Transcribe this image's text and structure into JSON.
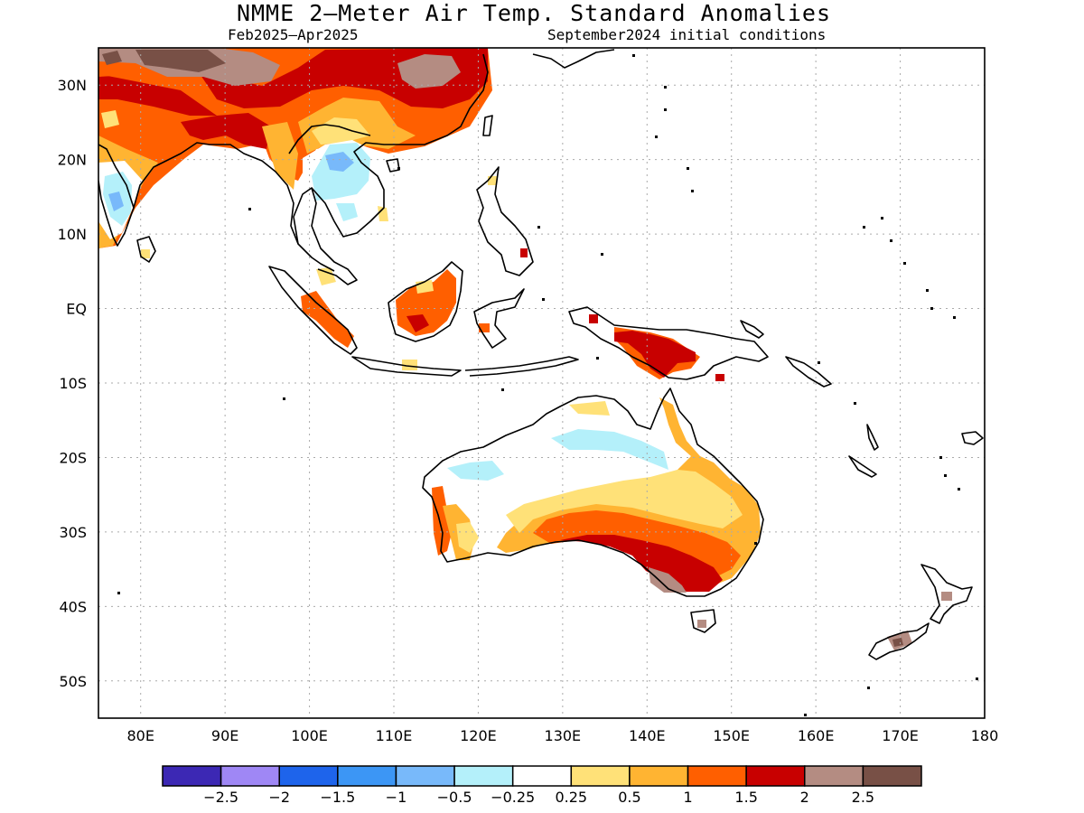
{
  "header": {
    "title": "NMME 2—Meter Air Temp. Standard Anomalies",
    "period": "Feb2025—Apr2025",
    "init": "September2024 initial conditions"
  },
  "map": {
    "lat_range": [
      -55,
      35
    ],
    "lon_range": [
      75,
      180
    ],
    "lat_labels": [
      "30N",
      "20N",
      "10N",
      "EQ",
      "10S",
      "20S",
      "30S",
      "40S",
      "50S"
    ],
    "lon_labels": [
      "80E",
      "90E",
      "100E",
      "110E",
      "120E",
      "130E",
      "140E",
      "150E",
      "160E",
      "170E",
      "180"
    ],
    "lat_values": [
      30,
      20,
      10,
      0,
      -10,
      -20,
      -30,
      -40,
      -50
    ],
    "lon_values": [
      80,
      90,
      100,
      110,
      120,
      130,
      140,
      150,
      160,
      170,
      180
    ]
  },
  "legend": {
    "colors": [
      "#3c28b4",
      "#9f87f5",
      "#1e64eb",
      "#3c96f5",
      "#78b9fa",
      "#b4f0fa",
      "#ffffff",
      "#ffe178",
      "#ffb432",
      "#ff5f00",
      "#c80000",
      "#b48c82",
      "#785046"
    ],
    "labels": [
      "−2.5",
      "−2",
      "−1.5",
      "−1",
      "−0.5",
      "−0.25",
      "0.25",
      "0.5",
      "1",
      "1.5",
      "2",
      "2.5"
    ]
  }
}
